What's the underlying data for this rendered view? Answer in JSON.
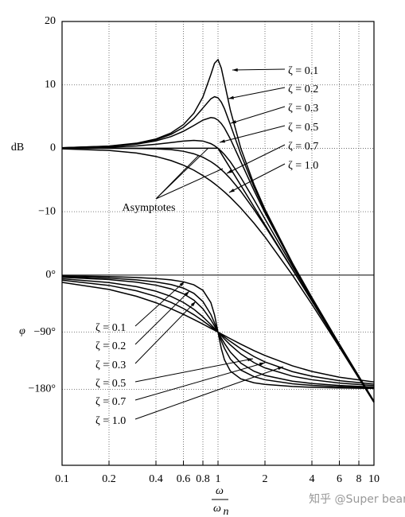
{
  "chart_data": {
    "type": "line",
    "xscale": "log",
    "grid": true,
    "xlabel": {
      "numerator": "ω",
      "denominator": {
        "symbol": "ω",
        "subscript": "n"
      }
    },
    "ylabel": "dB",
    "y2label": "φ",
    "annotation": "Asymptotes",
    "watermark": "知乎 @Super bear",
    "xlim": [
      0.1,
      10
    ],
    "xticks": [
      0.1,
      0.2,
      0.4,
      0.6,
      0.8,
      1,
      2,
      4,
      6,
      8,
      10
    ],
    "ylim": [
      -50,
      20
    ],
    "yticks": [
      20,
      10,
      0,
      {
        "value": -10,
        "label": "−10"
      }
    ],
    "y2lim": [
      -300,
      400
    ],
    "y2ticks": [
      {
        "value": 0,
        "label": "0°"
      },
      {
        "value": -90,
        "label": "−90°"
      },
      {
        "value": -180,
        "label": "−180°"
      }
    ],
    "x": [
      0.1,
      0.2,
      0.3,
      0.4,
      0.5,
      0.6,
      0.7,
      0.8,
      0.9,
      0.95,
      1,
      1.05,
      1.1,
      1.2,
      1.4,
      1.7,
      2,
      3,
      4,
      6,
      10
    ],
    "asymptote": {
      "x": [
        0.1,
        1,
        10
      ],
      "values": [
        0,
        0,
        -40
      ]
    },
    "series": [
      {
        "name": "ζ = 0.1",
        "color": "#000000",
        "axis": "y",
        "values": [
          0.09,
          0.35,
          0.8,
          1.47,
          2.42,
          3.73,
          5.53,
          8.09,
          11.64,
          13.41,
          13.98,
          12.63,
          10.34,
          6.0,
          0.0,
          -5.67,
          -9.62,
          -18.09,
          -23.53,
          -30.89,
          -39.91
        ]
      },
      {
        "name": "ζ = 0.2",
        "color": "#000000",
        "axis": "y",
        "values": [
          0.08,
          0.32,
          0.74,
          1.36,
          2.2,
          3.3,
          4.7,
          6.35,
          7.81,
          8.13,
          7.96,
          7.28,
          6.24,
          3.73,
          -0.92,
          -6.06,
          -9.84,
          -18.16,
          -23.57,
          -30.9,
          -39.92
        ]
      },
      {
        "name": "ζ = 0.3",
        "color": "#000000",
        "axis": "y",
        "values": [
          0.07,
          0.29,
          0.65,
          1.17,
          1.85,
          2.68,
          3.6,
          4.44,
          4.85,
          4.76,
          4.44,
          3.9,
          3.19,
          1.47,
          -2.11,
          -6.64,
          -10.19,
          -18.28,
          -23.63,
          -30.93,
          -39.93
        ]
      },
      {
        "name": "ζ = 0.5",
        "color": "#000000",
        "axis": "y",
        "values": [
          0.04,
          0.17,
          0.37,
          0.63,
          0.9,
          1.14,
          1.25,
          1.14,
          0.73,
          0.4,
          0,
          -0.47,
          -0.98,
          -2.13,
          -4.6,
          -8.1,
          -11.14,
          -18.63,
          -23.82,
          -31.01,
          -39.96
        ]
      },
      {
        "name": "ζ = 0.7",
        "color": "#000000",
        "axis": "y",
        "values": [
          0,
          0,
          -0.02,
          -0.08,
          -0.22,
          -0.47,
          -0.87,
          -1.41,
          -2.11,
          -2.5,
          -2.92,
          -3.37,
          -3.83,
          -4.79,
          -6.78,
          -9.66,
          -12.26,
          -19.12,
          -24.09,
          -31.12,
          -40
        ]
      },
      {
        "name": "ζ = 1.0",
        "color": "#000000",
        "axis": "y",
        "values": [
          -0.09,
          -0.34,
          -0.75,
          -1.29,
          -1.94,
          -2.67,
          -3.46,
          -4.3,
          -5.15,
          -5.59,
          -6.02,
          -6.46,
          -6.89,
          -7.75,
          -9.43,
          -11.8,
          -13.98,
          -20,
          -24.61,
          -31.36,
          -40.09
        ]
      },
      {
        "name": "ζ = 0.1",
        "color": "#000000",
        "axis": "y2",
        "values": [
          -1.16,
          -2.39,
          -3.77,
          -5.44,
          -7.59,
          -10.62,
          -15.35,
          -23.96,
          -43.45,
          -62.83,
          -90,
          -116.02,
          -133.67,
          -151.39,
          -163.74,
          -169.8,
          -172.41,
          -175.71,
          -176.95,
          -178.04,
          -178.84
        ]
      },
      {
        "name": "ζ = 0.2",
        "color": "#000000",
        "axis": "y2",
        "values": [
          -2.31,
          -4.76,
          -7.51,
          -10.78,
          -14.93,
          -20.56,
          -28.77,
          -41.63,
          -62.18,
          -75.61,
          -90,
          -103.71,
          -115.52,
          -132.51,
          -149.74,
          -160.21,
          -165.07,
          -171.47,
          -173.91,
          -176.08,
          -177.69
        ]
      },
      {
        "name": "ζ = 0.3",
        "color": "#000000",
        "axis": "y2",
        "values": [
          -3.47,
          -7.13,
          -11.19,
          -15.95,
          -21.8,
          -29.36,
          -39.47,
          -53.13,
          -70.62,
          -80.29,
          -90,
          -99.24,
          -107.65,
          -121.43,
          -138.81,
          -151.64,
          -158.2,
          -167.32,
          -170.91,
          -174.13,
          -176.53
        ]
      },
      {
        "name": "ζ = 0.5",
        "color": "#000000",
        "axis": "y2",
        "values": [
          -5.77,
          -11.77,
          -18.25,
          -25.46,
          -33.69,
          -43.15,
          -53.93,
          -65.77,
          -78.08,
          -84.14,
          -90,
          -95.58,
          -100.81,
          -110.14,
          -124.44,
          -138.03,
          -146.31,
          -159.44,
          -165.07,
          -170.27,
          -174.23
        ]
      },
      {
        "name": "ζ = 0.7",
        "color": "#000000",
        "axis": "y2",
        "values": [
          -8.05,
          -16.26,
          -24.78,
          -33.69,
          -43.03,
          -52.7,
          -62.51,
          -72.18,
          -81.43,
          -85.81,
          -90,
          -93.99,
          -97.77,
          -104.68,
          -116.09,
          -128.45,
          -136.97,
          -152.3,
          -159.53,
          -166.5,
          -171.95
        ]
      },
      {
        "name": "ζ = 1.0",
        "color": "#000000",
        "axis": "y2",
        "values": [
          -11.42,
          -22.62,
          -33.4,
          -43.6,
          -53.13,
          -61.93,
          -69.98,
          -77.32,
          -83.97,
          -87.06,
          -90,
          -92.8,
          -95.45,
          -100.39,
          -108.92,
          -119.06,
          -126.87,
          -143.13,
          -151.93,
          -161.08,
          -168.58
        ]
      }
    ]
  }
}
